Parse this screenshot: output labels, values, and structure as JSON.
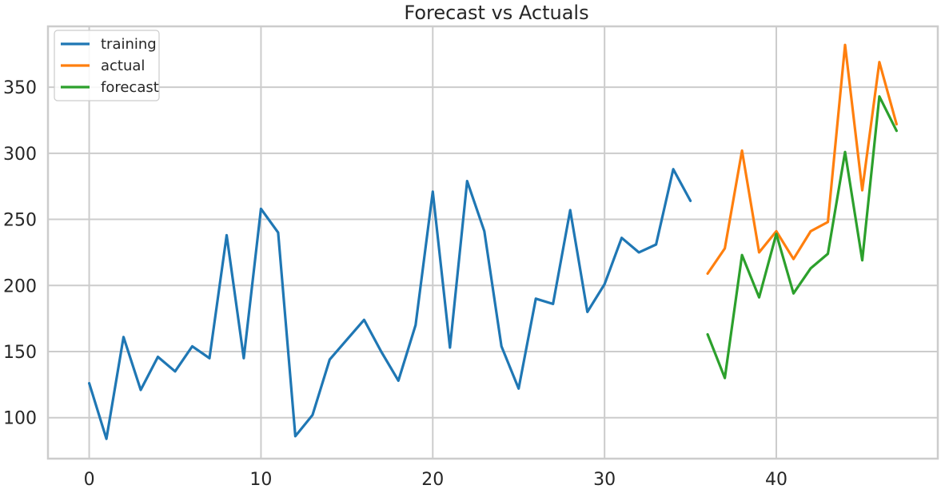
{
  "chart_data": {
    "type": "line",
    "title": "Forecast vs Actuals",
    "xlabel": "",
    "ylabel": "",
    "xlim": [
      -2.4,
      49.4
    ],
    "ylim": [
      69,
      396
    ],
    "xticks": [
      0,
      10,
      20,
      30,
      40
    ],
    "yticks": [
      100,
      150,
      200,
      250,
      300,
      350
    ],
    "grid": true,
    "legend_position": "top-left",
    "series": [
      {
        "name": "training",
        "color": "#1f77b4",
        "x": [
          0,
          1,
          2,
          3,
          4,
          5,
          6,
          7,
          8,
          9,
          10,
          11,
          12,
          13,
          14,
          15,
          16,
          17,
          18,
          19,
          20,
          21,
          22,
          23,
          24,
          25,
          26,
          27,
          28,
          29,
          30,
          31,
          32,
          33,
          34,
          35
        ],
        "values": [
          126,
          84,
          161,
          121,
          146,
          135,
          154,
          145,
          238,
          145,
          258,
          240,
          86,
          102,
          144,
          159,
          174,
          150,
          128,
          170,
          271,
          153,
          279,
          241,
          154,
          122,
          190,
          186,
          257,
          180,
          201,
          236,
          225,
          231,
          288,
          264
        ]
      },
      {
        "name": "actual",
        "color": "#ff7f0e",
        "x": [
          36,
          37,
          38,
          39,
          40,
          41,
          42,
          43,
          44,
          45,
          46,
          47
        ],
        "values": [
          209,
          228,
          302,
          225,
          241,
          220,
          241,
          248,
          382,
          272,
          369,
          322
        ]
      },
      {
        "name": "forecast",
        "color": "#2ca02c",
        "x": [
          36,
          37,
          38,
          39,
          40,
          41,
          42,
          43,
          44,
          45,
          46,
          47
        ],
        "values": [
          163,
          130,
          223,
          191,
          239,
          194,
          213,
          224,
          301,
          219,
          343,
          317
        ]
      }
    ]
  }
}
